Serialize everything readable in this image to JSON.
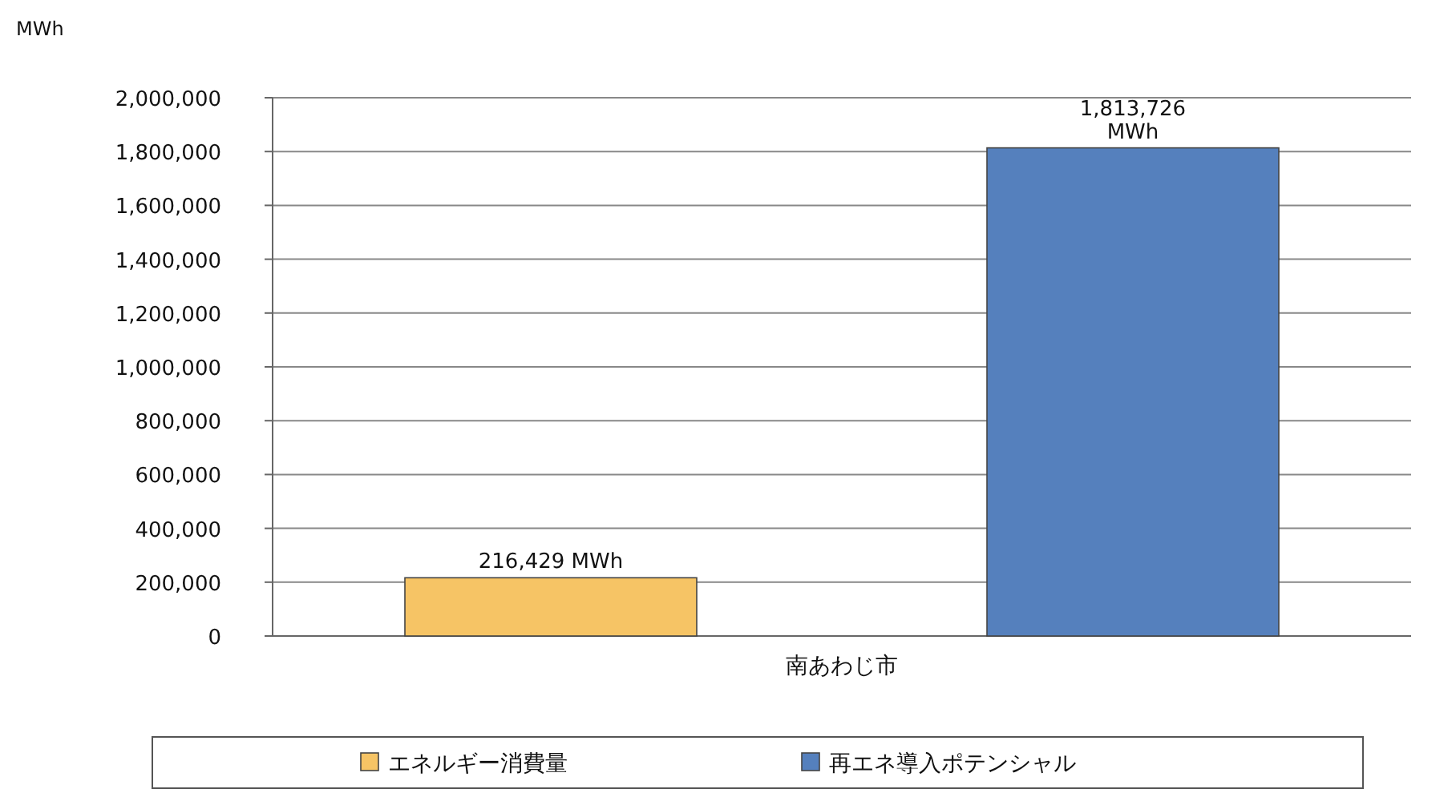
{
  "chart_data": {
    "type": "bar",
    "ylabel": "MWh",
    "categories": [
      "南あわじ市"
    ],
    "series": [
      {
        "name": "エネルギー消費量",
        "color": "#f6c465",
        "values": [
          216429
        ],
        "value_labels": [
          "216,429 MWh"
        ]
      },
      {
        "name": "再エネ導入ポテンシャル",
        "color": "#5580bd",
        "values": [
          1813726
        ],
        "value_labels": [
          "1,813,726 MWh"
        ]
      }
    ],
    "ylim": [
      0,
      2000000
    ],
    "yticks": [
      {
        "value": 0,
        "label": "0"
      },
      {
        "value": 200000,
        "label": "200,000"
      },
      {
        "value": 400000,
        "label": "400,000"
      },
      {
        "value": 600000,
        "label": "600,000"
      },
      {
        "value": 800000,
        "label": "800,000"
      },
      {
        "value": 1000000,
        "label": "1,000,000"
      },
      {
        "value": 1200000,
        "label": "1,200,000"
      },
      {
        "value": 1400000,
        "label": "1,400,000"
      },
      {
        "value": 1600000,
        "label": "1,600,000"
      },
      {
        "value": 1800000,
        "label": "1,800,000"
      },
      {
        "value": 2000000,
        "label": "2,000,000"
      }
    ],
    "grid": "y",
    "legend": "bottom"
  }
}
